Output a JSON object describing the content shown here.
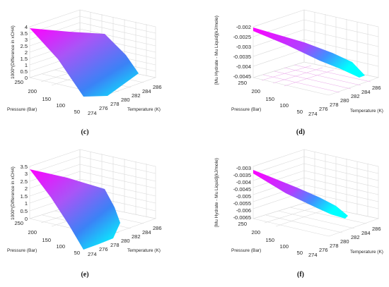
{
  "panels": [
    {
      "caption": "(c)",
      "zlabel": "1000*(Difference in xCH4)",
      "xlabel": "Temperature (K)",
      "ylabel": "Pressure (Bar)",
      "zticks": [
        "4",
        "3.5",
        "3",
        "2.5",
        "2",
        "1.5",
        "1",
        "0.5",
        "0"
      ],
      "xticks": [
        "274",
        "276",
        "278",
        "280",
        "282",
        "284",
        "286"
      ],
      "yticks": [
        "250",
        "200",
        "150",
        "100",
        "50"
      ]
    },
    {
      "caption": "(d)",
      "zlabel": "[Mu Hydrate - Mu Liquid](kJ/mole)",
      "xlabel": "Temperature (K)",
      "ylabel": "Pressure (Bar)",
      "zticks": [
        "-0.002",
        "-0.0025",
        "-0.003",
        "-0.0035",
        "-0.004",
        "-0.0045"
      ],
      "xticks": [
        "274",
        "276",
        "278",
        "280",
        "282",
        "284",
        "286"
      ],
      "yticks": [
        "250",
        "200",
        "150",
        "100",
        "50"
      ]
    },
    {
      "caption": "(e)",
      "zlabel": "1000*(Difference in xCH4)",
      "xlabel": "Temperature (K)",
      "ylabel": "Pressure (Bar)",
      "zticks": [
        "3.5",
        "3",
        "2.5",
        "2",
        "1.5",
        "1",
        "0.5",
        "0"
      ],
      "xticks": [
        "274",
        "276",
        "278",
        "280",
        "282",
        "284",
        "286"
      ],
      "yticks": [
        "250",
        "200",
        "150",
        "100",
        "50"
      ]
    },
    {
      "caption": "(f)",
      "zlabel": "[Mu Hydrate - Mu Liquid](kJ/mole)",
      "xlabel": "Temperature (K)",
      "ylabel": "Pressure (Bar)",
      "zticks": [
        "-0.003",
        "-0.0035",
        "-0.004",
        "-0.0045",
        "-0.005",
        "-0.0055",
        "-0.006",
        "-0.0065"
      ],
      "xticks": [
        "274",
        "276",
        "278",
        "280",
        "282",
        "284",
        "286"
      ],
      "yticks": [
        "250",
        "200",
        "150",
        "100",
        "50"
      ]
    }
  ],
  "chart_data": [
    {
      "type": "surface",
      "caption": "(c)",
      "xlabel": "Temperature (K)",
      "ylabel": "Pressure (Bar)",
      "zlabel": "1000*(Difference in xCH4)",
      "xlim": [
        273,
        286
      ],
      "ylim": [
        40,
        250
      ],
      "zlim": [
        0,
        4
      ],
      "grid": true,
      "colormap": [
        "#00ffff",
        "#ff00ff"
      ],
      "surface_corners": [
        {
          "T": 274,
          "P": 250,
          "z": 3.8
        },
        {
          "T": 281,
          "P": 250,
          "z": 3.3
        },
        {
          "T": 282,
          "P": 150,
          "z": 1.8
        },
        {
          "T": 282,
          "P": 50,
          "z": 0.2
        },
        {
          "T": 276,
          "P": 50,
          "z": 0.0
        }
      ]
    },
    {
      "type": "surface",
      "caption": "(d)",
      "xlabel": "Temperature (K)",
      "ylabel": "Pressure (Bar)",
      "zlabel": "[Mu Hydrate - Mu Liquid](kJ/mole)",
      "xlim": [
        273,
        286
      ],
      "ylim": [
        40,
        250
      ],
      "zlim": [
        -0.0046,
        -0.002
      ],
      "grid": true,
      "colormap": [
        "#00ffff",
        "#ff00ff"
      ],
      "surface_corners": [
        {
          "T": 274,
          "P": 250,
          "z": -0.002
        },
        {
          "T": 281,
          "P": 250,
          "z": -0.0032
        },
        {
          "T": 282,
          "P": 50,
          "z": -0.0046
        },
        {
          "T": 276,
          "P": 50,
          "z": -0.0041
        }
      ]
    },
    {
      "type": "surface",
      "caption": "(e)",
      "xlabel": "Temperature (K)",
      "ylabel": "Pressure (Bar)",
      "zlabel": "1000*(Difference in xCH4)",
      "xlim": [
        273,
        286
      ],
      "ylim": [
        40,
        250
      ],
      "zlim": [
        0,
        3.5
      ],
      "grid": true,
      "colormap": [
        "#00ffff",
        "#ff00ff"
      ],
      "surface_corners": [
        {
          "T": 274,
          "P": 250,
          "z": 3.2
        },
        {
          "T": 281,
          "P": 250,
          "z": 2.6
        },
        {
          "T": 281,
          "P": 150,
          "z": 1.2
        },
        {
          "T": 280,
          "P": 60,
          "z": 0.3
        },
        {
          "T": 276,
          "P": 50,
          "z": 0.0
        }
      ]
    },
    {
      "type": "surface",
      "caption": "(f)",
      "xlabel": "Temperature (K)",
      "ylabel": "Pressure (Bar)",
      "zlabel": "[Mu Hydrate - Mu Liquid](kJ/mole)",
      "xlim": [
        273,
        286
      ],
      "ylim": [
        40,
        250
      ],
      "zlim": [
        -0.0066,
        -0.003
      ],
      "grid": true,
      "colormap": [
        "#00ffff",
        "#ff00ff"
      ],
      "surface_corners": [
        {
          "T": 274,
          "P": 250,
          "z": -0.0031
        },
        {
          "T": 280,
          "P": 250,
          "z": -0.0045
        },
        {
          "T": 282,
          "P": 60,
          "z": -0.0062
        },
        {
          "T": 276,
          "P": 50,
          "z": -0.0058
        }
      ]
    }
  ]
}
